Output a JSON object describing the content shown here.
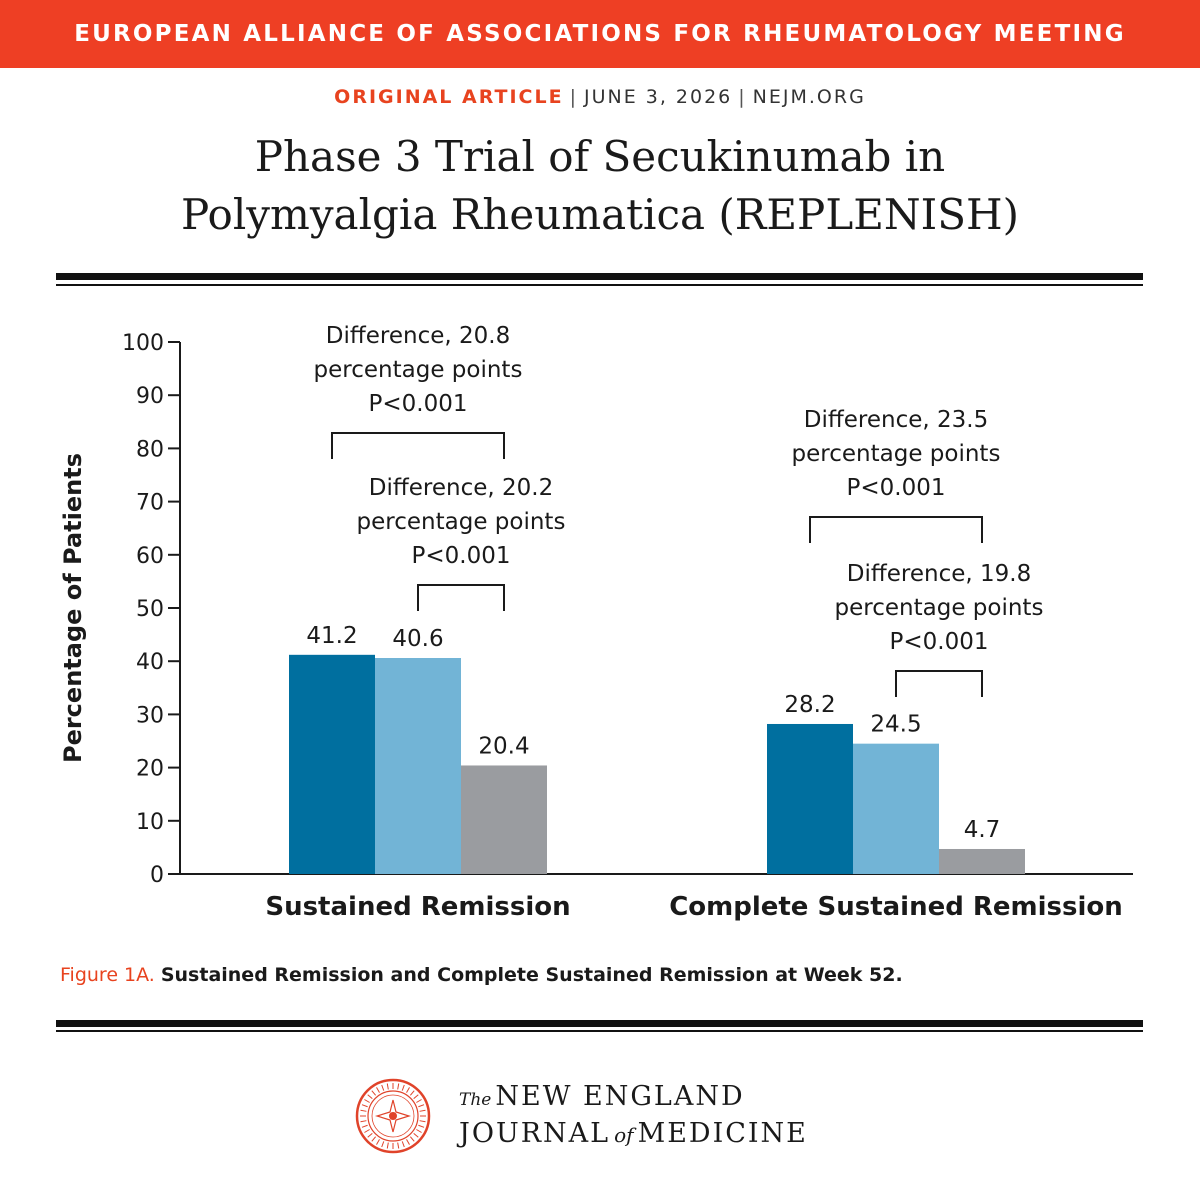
{
  "banner": {
    "text": "EUROPEAN ALLIANCE OF ASSOCIATIONS FOR RHEUMATOLOGY MEETING"
  },
  "meta": {
    "article_type": "ORIGINAL ARTICLE",
    "date": "JUNE 3, 2026",
    "site": "NEJM.ORG"
  },
  "title": {
    "line1": "Phase 3 Trial of Secukinumab in",
    "line2": "Polymyalgia Rheumatica (REPLENISH)"
  },
  "colors": {
    "accent": "#ee3f24",
    "series_dark": "#006f9f",
    "series_light": "#72b4d6",
    "series_gray": "#9a9ca0"
  },
  "chart_data": {
    "type": "bar",
    "ylabel": "Percentage of Patients",
    "ylim": [
      0,
      100
    ],
    "yticks": [
      0,
      10,
      20,
      30,
      40,
      50,
      60,
      70,
      80,
      90,
      100
    ],
    "categories": [
      "Sustained Remission",
      "Complete Sustained Remission"
    ],
    "series": [
      {
        "values": [
          41.2,
          28.2
        ],
        "labels": [
          "41.2",
          "28.2"
        ]
      },
      {
        "values": [
          40.6,
          24.5
        ],
        "labels": [
          "40.6",
          "24.5"
        ]
      },
      {
        "values": [
          20.4,
          4.7
        ],
        "labels": [
          "20.4",
          "4.7"
        ]
      }
    ],
    "annotations": [
      {
        "category": 0,
        "from_series": 0,
        "to_series": 2,
        "lines": [
          "Difference, 20.8",
          "percentage points",
          "P<0.001"
        ]
      },
      {
        "category": 0,
        "from_series": 1,
        "to_series": 2,
        "lines": [
          "Difference, 20.2",
          "percentage points",
          "P<0.001"
        ]
      },
      {
        "category": 1,
        "from_series": 0,
        "to_series": 2,
        "lines": [
          "Difference, 23.5",
          "percentage points",
          "P<0.001"
        ]
      },
      {
        "category": 1,
        "from_series": 1,
        "to_series": 2,
        "lines": [
          "Difference, 19.8",
          "percentage points",
          "P<0.001"
        ]
      }
    ]
  },
  "caption": {
    "label": "Figure 1A.",
    "text": "Sustained Remission and Complete Sustained Remission at Week 52."
  },
  "footer": {
    "the": "The",
    "line1": "NEW ENGLAND",
    "journal": "JOURNAL",
    "of": "of",
    "medicine": "MEDICINE",
    "seal_text": "MASSACHUSETTS MEDICAL SOCIETY",
    "seal_years": [
      "1812",
      "1823",
      "1828",
      "1928"
    ]
  }
}
